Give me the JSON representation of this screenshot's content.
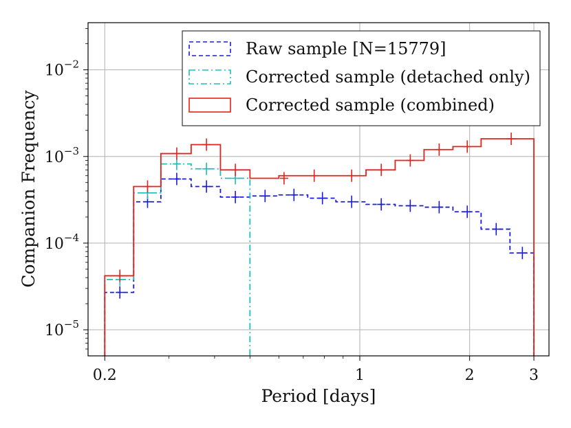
{
  "chart_data": {
    "type": "histogram",
    "xlabel": "Period [days]",
    "ylabel": "Companion Frequency",
    "x_scale": "log",
    "y_scale": "log",
    "xlim": [
      0.18,
      3.3
    ],
    "ylim": [
      5e-06,
      0.035
    ],
    "grid": true,
    "legend_position": "top-right",
    "x_ticks": [
      {
        "value": 0.2,
        "label": "0.2"
      },
      {
        "value": 1,
        "label": "1"
      },
      {
        "value": 2,
        "label": "2"
      },
      {
        "value": 3,
        "label": "3"
      }
    ],
    "y_ticks": [
      {
        "value": 1e-05,
        "base": "10",
        "exp": "−5"
      },
      {
        "value": 0.0001,
        "base": "10",
        "exp": "−4"
      },
      {
        "value": 0.001,
        "base": "10",
        "exp": "−3"
      },
      {
        "value": 0.01,
        "base": "10",
        "exp": "−2"
      }
    ],
    "bin_edges": [
      0.2,
      0.24,
      0.285,
      0.345,
      0.415,
      0.5,
      0.6,
      0.72,
      0.86,
      1.04,
      1.25,
      1.5,
      1.8,
      2.15,
      2.58,
      3.0
    ],
    "series": [
      {
        "name": "Raw sample [N=15779]",
        "color": "#1a1adf",
        "style": "dashed",
        "values": [
          2.7e-05,
          0.0003,
          0.00055,
          0.00045,
          0.00034,
          0.00035,
          0.00036,
          0.00033,
          0.0003,
          0.00028,
          0.00027,
          0.00026,
          0.00023,
          0.000145,
          7.7e-05
        ],
        "errors": [
          {
            "x": 0.22,
            "y": 2.7e-05
          },
          {
            "x": 0.262,
            "y": 0.0003
          },
          {
            "x": 0.315,
            "y": 0.00055
          },
          {
            "x": 0.38,
            "y": 0.00045
          },
          {
            "x": 0.456,
            "y": 0.00034
          },
          {
            "x": 0.55,
            "y": 0.00035
          },
          {
            "x": 0.66,
            "y": 0.00036
          },
          {
            "x": 0.79,
            "y": 0.00033
          },
          {
            "x": 0.95,
            "y": 0.0003
          },
          {
            "x": 1.145,
            "y": 0.00028
          },
          {
            "x": 1.375,
            "y": 0.00027
          },
          {
            "x": 1.65,
            "y": 0.00026
          },
          {
            "x": 1.97,
            "y": 0.00023
          },
          {
            "x": 2.365,
            "y": 0.000145
          },
          {
            "x": 2.79,
            "y": 7.7e-05
          }
        ]
      },
      {
        "name": "Corrected sample (detached only)",
        "color": "#22bbbb",
        "style": "dashdot",
        "values": [
          3.8e-05,
          0.00038,
          0.00082,
          0.00072,
          0.00056
        ],
        "errors": [
          {
            "x": 0.22,
            "y": 3.8e-05
          },
          {
            "x": 0.262,
            "y": 0.00038
          },
          {
            "x": 0.315,
            "y": 0.00082
          },
          {
            "x": 0.38,
            "y": 0.00072
          },
          {
            "x": 0.456,
            "y": 0.00056
          }
        ]
      },
      {
        "name": "Corrected sample (combined)",
        "color": "#e8201a",
        "style": "solid",
        "values": [
          4.2e-05,
          0.00045,
          0.00108,
          0.00137,
          0.0007,
          0.00056,
          0.0006,
          0.0006,
          0.0006,
          0.0007,
          0.0009,
          0.0012,
          0.0013,
          0.0016,
          0.0016
        ],
        "errors": [
          {
            "x": 0.22,
            "y": 4.2e-05
          },
          {
            "x": 0.262,
            "y": 0.00045
          },
          {
            "x": 0.315,
            "y": 0.00108
          },
          {
            "x": 0.38,
            "y": 0.00137
          },
          {
            "x": 0.456,
            "y": 0.0007
          },
          {
            "x": 0.62,
            "y": 0.00056
          },
          {
            "x": 0.75,
            "y": 0.0006
          },
          {
            "x": 0.95,
            "y": 0.0006
          },
          {
            "x": 1.145,
            "y": 0.0007
          },
          {
            "x": 1.375,
            "y": 0.0009
          },
          {
            "x": 1.65,
            "y": 0.0012
          },
          {
            "x": 1.97,
            "y": 0.0013
          },
          {
            "x": 2.6,
            "y": 0.0016
          }
        ]
      }
    ]
  }
}
